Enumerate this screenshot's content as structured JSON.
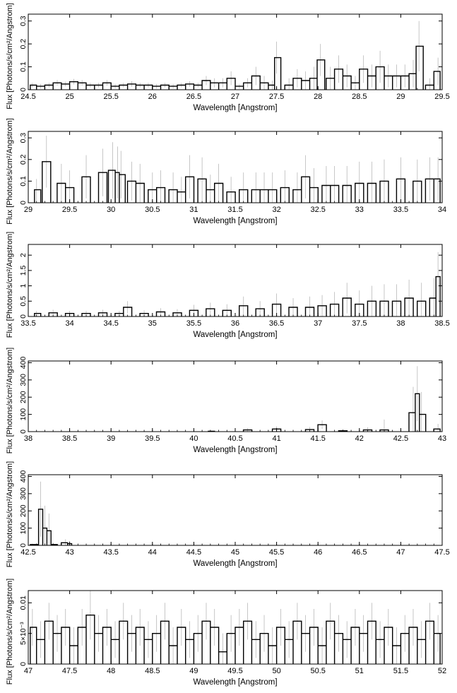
{
  "chart_data": [
    {
      "type": "histogram",
      "xlabel": "Wavelength [Angstrom]",
      "ylabel": "Flux [Photons/s/cm²/Angstrom]",
      "xlim": [
        24.5,
        29.5
      ],
      "ylim": [
        0,
        0.33
      ],
      "xticks": [
        "24.5",
        "25",
        "25.5",
        "26",
        "26.5",
        "27",
        "27.5",
        "28",
        "28.5",
        "29",
        "29.5"
      ],
      "yticks": [
        "0",
        "0.1",
        "0.2",
        "0.3"
      ],
      "x": [
        24.55,
        24.65,
        24.75,
        24.85,
        24.95,
        25.05,
        25.15,
        25.25,
        25.35,
        25.45,
        25.55,
        25.65,
        25.75,
        25.85,
        25.95,
        26.05,
        26.15,
        26.25,
        26.35,
        26.45,
        26.55,
        26.65,
        26.75,
        26.85,
        26.95,
        27.05,
        27.15,
        27.25,
        27.35,
        27.45,
        27.5,
        27.65,
        27.75,
        27.85,
        27.95,
        28.03,
        28.15,
        28.25,
        28.35,
        28.45,
        28.55,
        28.65,
        28.75,
        28.85,
        28.95,
        29.05,
        29.15,
        29.22,
        29.35,
        29.45
      ],
      "y": [
        0.02,
        0.015,
        0.02,
        0.03,
        0.025,
        0.035,
        0.03,
        0.02,
        0.02,
        0.03,
        0.015,
        0.02,
        0.025,
        0.02,
        0.02,
        0.015,
        0.02,
        0.015,
        0.02,
        0.025,
        0.02,
        0.04,
        0.03,
        0.03,
        0.05,
        0.015,
        0.03,
        0.06,
        0.03,
        0.02,
        0.14,
        0.02,
        0.05,
        0.04,
        0.05,
        0.13,
        0.05,
        0.09,
        0.06,
        0.03,
        0.09,
        0.06,
        0.1,
        0.06,
        0.06,
        0.06,
        0.07,
        0.19,
        0.02,
        0.08
      ],
      "err": [
        0.01,
        0.01,
        0.01,
        0.012,
        0.01,
        0.012,
        0.012,
        0.01,
        0.01,
        0.012,
        0.01,
        0.01,
        0.012,
        0.01,
        0.01,
        0.01,
        0.01,
        0.01,
        0.01,
        0.012,
        0.01,
        0.02,
        0.02,
        0.02,
        0.03,
        0.01,
        0.02,
        0.04,
        0.03,
        0.02,
        0.07,
        0.03,
        0.04,
        0.04,
        0.05,
        0.07,
        0.05,
        0.06,
        0.05,
        0.03,
        0.06,
        0.05,
        0.07,
        0.05,
        0.05,
        0.05,
        0.06,
        0.11,
        0.03,
        0.06
      ]
    },
    {
      "type": "histogram",
      "xlabel": "Wavelength [Angstrom]",
      "ylabel": "Flux [Photons/s/cm²/Angstrom]",
      "xlim": [
        29,
        34
      ],
      "ylim": [
        0,
        0.33
      ],
      "xticks": [
        "29",
        "29.5",
        "30",
        "30.5",
        "31",
        "31.5",
        "32",
        "32.5",
        "33",
        "33.5",
        "34"
      ],
      "yticks": [
        "0",
        "0.1",
        "0.2",
        "0.3"
      ],
      "x": [
        29.1,
        29.22,
        29.4,
        29.5,
        29.7,
        29.9,
        30.02,
        30.08,
        30.12,
        30.25,
        30.35,
        30.5,
        30.6,
        30.75,
        30.85,
        30.95,
        31.1,
        31.2,
        31.3,
        31.45,
        31.6,
        31.75,
        31.85,
        31.95,
        32.1,
        32.25,
        32.35,
        32.45,
        32.6,
        32.7,
        32.85,
        33.0,
        33.15,
        33.3,
        33.5,
        33.7,
        33.85,
        33.95
      ],
      "y": [
        0.06,
        0.19,
        0.09,
        0.07,
        0.12,
        0.14,
        0.15,
        0.14,
        0.13,
        0.1,
        0.09,
        0.06,
        0.07,
        0.06,
        0.05,
        0.12,
        0.11,
        0.06,
        0.09,
        0.05,
        0.06,
        0.06,
        0.06,
        0.06,
        0.07,
        0.06,
        0.12,
        0.07,
        0.08,
        0.08,
        0.08,
        0.09,
        0.09,
        0.1,
        0.11,
        0.1,
        0.11,
        0.11
      ],
      "err": [
        0.05,
        0.12,
        0.09,
        0.08,
        0.1,
        0.11,
        0.13,
        0.12,
        0.11,
        0.09,
        0.09,
        0.08,
        0.08,
        0.08,
        0.07,
        0.1,
        0.1,
        0.07,
        0.09,
        0.07,
        0.08,
        0.08,
        0.08,
        0.08,
        0.08,
        0.08,
        0.1,
        0.09,
        0.09,
        0.09,
        0.09,
        0.1,
        0.1,
        0.1,
        0.1,
        0.1,
        0.1,
        0.1
      ]
    },
    {
      "type": "histogram",
      "xlabel": "Wavelength [Angstrom]",
      "ylabel": "Flux [Photons/s/cm²/Angstrom]",
      "xlim": [
        33.5,
        38.5
      ],
      "ylim": [
        0,
        2.35
      ],
      "xticks": [
        "33.5",
        "34",
        "34.5",
        "35",
        "35.5",
        "36",
        "36.5",
        "37",
        "37.5",
        "38",
        "38.5"
      ],
      "yticks": [
        "0",
        "0.5",
        "1",
        "1.5",
        "2"
      ],
      "x": [
        33.6,
        33.8,
        34.0,
        34.2,
        34.4,
        34.6,
        34.7,
        34.9,
        35.1,
        35.3,
        35.5,
        35.7,
        35.9,
        36.1,
        36.3,
        36.5,
        36.7,
        36.9,
        37.05,
        37.2,
        37.35,
        37.5,
        37.65,
        37.8,
        37.95,
        38.1,
        38.25,
        38.4,
        38.45
      ],
      "y": [
        0.1,
        0.12,
        0.1,
        0.1,
        0.12,
        0.1,
        0.3,
        0.1,
        0.15,
        0.12,
        0.2,
        0.25,
        0.2,
        0.35,
        0.25,
        0.4,
        0.3,
        0.3,
        0.35,
        0.4,
        0.6,
        0.4,
        0.5,
        0.5,
        0.5,
        0.6,
        0.5,
        0.6,
        1.3
      ],
      "err": [
        0.08,
        0.1,
        0.08,
        0.08,
        0.1,
        0.08,
        0.2,
        0.1,
        0.12,
        0.12,
        0.18,
        0.2,
        0.2,
        0.3,
        0.25,
        0.35,
        0.3,
        0.35,
        0.35,
        0.4,
        0.5,
        0.45,
        0.5,
        0.55,
        0.55,
        0.6,
        0.6,
        0.65,
        0.8
      ]
    },
    {
      "type": "histogram",
      "xlabel": "Wavelength [Angstrom]",
      "ylabel": "Flux [Photons/s/cm²/Angstrom]",
      "xlim": [
        38,
        43
      ],
      "ylim": [
        0,
        410
      ],
      "xticks": [
        "38",
        "38.5",
        "39",
        "39.5",
        "40",
        "40.5",
        "41",
        "41.5",
        "42",
        "42.5",
        "43"
      ],
      "yticks": [
        "0",
        "100",
        "200",
        "300",
        "400"
      ],
      "x": [
        40.2,
        40.65,
        41.0,
        41.4,
        41.55,
        41.8,
        42.1,
        42.3,
        42.65,
        42.7,
        42.75,
        42.95
      ],
      "y": [
        2,
        10,
        15,
        12,
        40,
        5,
        10,
        10,
        110,
        220,
        100,
        15
      ],
      "err": [
        5,
        10,
        15,
        15,
        25,
        10,
        15,
        60,
        150,
        160,
        130,
        30
      ]
    },
    {
      "type": "histogram",
      "xlabel": "Wavelength [Angstrom]",
      "ylabel": "Flux [Photons/s/cm²/Angstrom]",
      "xlim": [
        42.5,
        47.5
      ],
      "ylim": [
        0,
        410
      ],
      "xticks": [
        "42.5",
        "43",
        "43.5",
        "44",
        "44.5",
        "45",
        "45.5",
        "46",
        "46.5",
        "47",
        "47.5"
      ],
      "yticks": [
        "0",
        "100",
        "200",
        "300",
        "400"
      ],
      "x": [
        42.55,
        42.6,
        42.65,
        42.7,
        42.75,
        42.8,
        42.95,
        43.0
      ],
      "y": [
        5,
        5,
        210,
        100,
        85,
        5,
        15,
        10
      ],
      "err": [
        5,
        5,
        160,
        130,
        100,
        10,
        20,
        15
      ]
    },
    {
      "type": "histogram",
      "xlabel": "Wavelength [Angstrom]",
      "ylabel": "Flux [Photons/s/cm²/Angstrom]",
      "xlim": [
        47,
        52
      ],
      "ylim": [
        0,
        0.012
      ],
      "xticks": [
        "47",
        "47.5",
        "48",
        "48.5",
        "49",
        "49.5",
        "50",
        "50.5",
        "51",
        "51.5",
        "52"
      ],
      "yticks": [
        "0",
        "5×10⁻³",
        "0.01"
      ],
      "x": [
        47.05,
        47.15,
        47.25,
        47.35,
        47.45,
        47.55,
        47.65,
        47.75,
        47.85,
        47.95,
        48.05,
        48.15,
        48.25,
        48.35,
        48.45,
        48.55,
        48.65,
        48.75,
        48.85,
        48.95,
        49.05,
        49.15,
        49.25,
        49.35,
        49.45,
        49.55,
        49.65,
        49.75,
        49.85,
        49.95,
        50.05,
        50.15,
        50.25,
        50.35,
        50.45,
        50.55,
        50.65,
        50.75,
        50.85,
        50.95,
        51.05,
        51.15,
        51.25,
        51.35,
        51.45,
        51.55,
        51.65,
        51.75,
        51.85,
        51.95
      ],
      "y": [
        0.006,
        0.004,
        0.007,
        0.005,
        0.006,
        0.003,
        0.006,
        0.008,
        0.005,
        0.006,
        0.004,
        0.007,
        0.005,
        0.006,
        0.004,
        0.005,
        0.007,
        0.003,
        0.006,
        0.004,
        0.005,
        0.007,
        0.006,
        0.002,
        0.005,
        0.006,
        0.007,
        0.004,
        0.005,
        0.003,
        0.006,
        0.004,
        0.007,
        0.005,
        0.006,
        0.003,
        0.007,
        0.005,
        0.004,
        0.006,
        0.005,
        0.007,
        0.004,
        0.006,
        0.003,
        0.005,
        0.006,
        0.004,
        0.007,
        0.005
      ],
      "err": [
        0.003,
        0.003,
        0.003,
        0.003,
        0.003,
        0.003,
        0.003,
        0.004,
        0.003,
        0.003,
        0.003,
        0.003,
        0.003,
        0.003,
        0.003,
        0.003,
        0.003,
        0.003,
        0.003,
        0.003,
        0.003,
        0.003,
        0.003,
        0.003,
        0.003,
        0.003,
        0.003,
        0.003,
        0.003,
        0.003,
        0.003,
        0.003,
        0.003,
        0.003,
        0.003,
        0.003,
        0.003,
        0.003,
        0.003,
        0.003,
        0.003,
        0.003,
        0.003,
        0.003,
        0.003,
        0.003,
        0.003,
        0.003,
        0.003,
        0.003
      ]
    }
  ]
}
